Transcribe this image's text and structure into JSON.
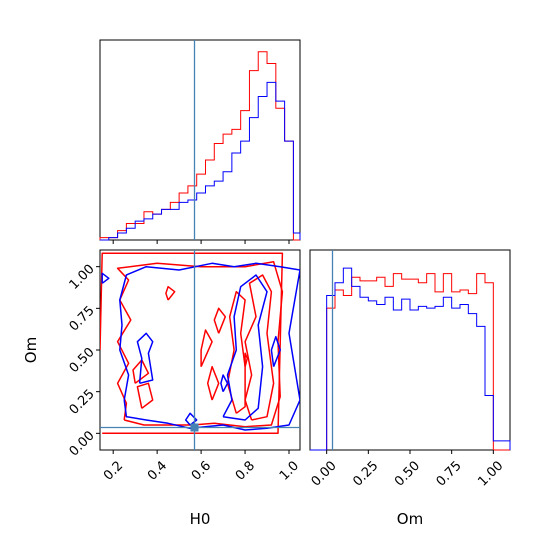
{
  "chart_data": {
    "type": "corner",
    "parameters": [
      "H0",
      "Om"
    ],
    "truths": {
      "H0": 0.57,
      "Om": 0.035
    },
    "colors": {
      "sample_a": "#ff0000",
      "sample_b": "#0000ff",
      "truth": "#4682b4"
    },
    "h0_histogram": {
      "bin_edges": [
        0.14,
        0.18,
        0.22,
        0.26,
        0.3,
        0.34,
        0.38,
        0.42,
        0.46,
        0.5,
        0.54,
        0.58,
        0.62,
        0.66,
        0.7,
        0.74,
        0.78,
        0.82,
        0.86,
        0.9,
        0.94,
        0.98,
        1.02,
        1.05
      ],
      "sample_a": [
        0.01,
        0.01,
        0.04,
        0.07,
        0.07,
        0.12,
        0.11,
        0.13,
        0.16,
        0.2,
        0.23,
        0.28,
        0.34,
        0.41,
        0.45,
        0.47,
        0.55,
        0.72,
        0.8,
        0.75,
        0.56,
        0.42,
        0.0
      ],
      "sample_b": [
        0.0,
        0.01,
        0.03,
        0.05,
        0.08,
        0.09,
        0.11,
        0.13,
        0.13,
        0.16,
        0.17,
        0.2,
        0.23,
        0.25,
        0.29,
        0.37,
        0.42,
        0.52,
        0.61,
        0.67,
        0.59,
        0.42,
        0.03
      ]
    },
    "om_histogram": {
      "bin_edges": [
        -0.1,
        -0.05,
        0.0,
        0.05,
        0.1,
        0.15,
        0.2,
        0.25,
        0.3,
        0.35,
        0.4,
        0.45,
        0.5,
        0.55,
        0.6,
        0.65,
        0.7,
        0.75,
        0.8,
        0.85,
        0.9,
        0.95,
        1.0,
        1.05,
        1.1
      ],
      "sample_a": [
        0,
        0,
        0.78,
        0.88,
        0.85,
        0.95,
        0.93,
        0.93,
        0.95,
        0.9,
        0.97,
        0.94,
        0.94,
        0.92,
        0.97,
        0.87,
        0.97,
        0.87,
        0.88,
        0.86,
        0.97,
        0.92,
        0,
        0
      ],
      "sample_b": [
        0,
        0,
        0.85,
        0.92,
        1.0,
        0.9,
        0.84,
        0.82,
        0.8,
        0.84,
        0.77,
        0.83,
        0.77,
        0.79,
        0.78,
        0.79,
        0.84,
        0.78,
        0.8,
        0.75,
        0.68,
        0.3,
        0.05,
        0.05
      ]
    },
    "joint_contours": {
      "sample_a": [
        [
          [
            0.15,
            0.0
          ],
          [
            0.95,
            0.0
          ],
          [
            0.97,
            1.08
          ],
          [
            0.15,
            1.08
          ],
          [
            0.14,
            0.5
          ]
        ],
        [
          [
            0.25,
            0.08
          ],
          [
            0.34,
            0.05
          ],
          [
            0.46,
            0.05
          ],
          [
            0.56,
            0.05
          ],
          [
            0.66,
            0.06
          ],
          [
            0.8,
            0.04
          ],
          [
            0.92,
            0.05
          ],
          [
            0.96,
            0.22
          ],
          [
            0.95,
            0.55
          ],
          [
            0.97,
            0.85
          ],
          [
            0.93,
            1.03
          ],
          [
            0.8,
            1.0
          ],
          [
            0.6,
            1.0
          ],
          [
            0.4,
            1.02
          ],
          [
            0.22,
            0.99
          ],
          [
            0.27,
            0.92
          ],
          [
            0.23,
            0.8
          ],
          [
            0.28,
            0.68
          ],
          [
            0.22,
            0.55
          ],
          [
            0.27,
            0.42
          ],
          [
            0.22,
            0.3
          ],
          [
            0.26,
            0.18
          ],
          [
            0.25,
            0.08
          ]
        ],
        [
          [
            0.83,
            0.08
          ],
          [
            0.9,
            0.1
          ],
          [
            0.93,
            0.3
          ],
          [
            0.9,
            0.6
          ],
          [
            0.92,
            0.85
          ],
          [
            0.88,
            0.95
          ],
          [
            0.82,
            0.9
          ],
          [
            0.85,
            0.7
          ],
          [
            0.8,
            0.55
          ],
          [
            0.83,
            0.35
          ],
          [
            0.8,
            0.2
          ],
          [
            0.83,
            0.08
          ]
        ],
        [
          [
            0.76,
            0.12
          ],
          [
            0.8,
            0.16
          ],
          [
            0.8,
            0.4
          ],
          [
            0.78,
            0.6
          ],
          [
            0.8,
            0.8
          ],
          [
            0.76,
            0.85
          ],
          [
            0.73,
            0.7
          ],
          [
            0.75,
            0.5
          ],
          [
            0.72,
            0.3
          ],
          [
            0.76,
            0.12
          ]
        ],
        [
          [
            0.33,
            0.15
          ],
          [
            0.38,
            0.2
          ],
          [
            0.36,
            0.3
          ],
          [
            0.31,
            0.28
          ],
          [
            0.33,
            0.15
          ]
        ],
        [
          [
            0.3,
            0.3
          ],
          [
            0.36,
            0.36
          ],
          [
            0.33,
            0.44
          ],
          [
            0.29,
            0.38
          ],
          [
            0.3,
            0.3
          ]
        ],
        [
          [
            0.6,
            0.4
          ],
          [
            0.65,
            0.55
          ],
          [
            0.62,
            0.62
          ],
          [
            0.6,
            0.5
          ],
          [
            0.6,
            0.4
          ]
        ],
        [
          [
            0.65,
            0.2
          ],
          [
            0.68,
            0.3
          ],
          [
            0.65,
            0.4
          ],
          [
            0.63,
            0.3
          ],
          [
            0.65,
            0.2
          ]
        ],
        [
          [
            0.68,
            0.6
          ],
          [
            0.71,
            0.7
          ],
          [
            0.68,
            0.75
          ],
          [
            0.66,
            0.68
          ],
          [
            0.68,
            0.6
          ]
        ],
        [
          [
            0.45,
            0.8
          ],
          [
            0.48,
            0.85
          ],
          [
            0.45,
            0.88
          ],
          [
            0.44,
            0.84
          ],
          [
            0.45,
            0.8
          ]
        ],
        [
          [
            0.8,
            0.4
          ],
          [
            0.81,
            0.45
          ],
          [
            0.8,
            0.48
          ],
          [
            0.8,
            0.4
          ]
        ]
      ],
      "sample_b": [
        [
          [
            0.15,
            0.9
          ],
          [
            0.18,
            0.93
          ],
          [
            0.15,
            0.96
          ],
          [
            0.15,
            0.9
          ]
        ],
        [
          [
            0.25,
            0.2
          ],
          [
            0.27,
            0.35
          ],
          [
            0.23,
            0.5
          ],
          [
            0.24,
            0.65
          ],
          [
            0.23,
            0.8
          ],
          [
            0.26,
            0.95
          ],
          [
            0.35,
            1.0
          ],
          [
            0.5,
            0.98
          ],
          [
            0.65,
            1.02
          ],
          [
            0.75,
            1.0
          ],
          [
            0.85,
            1.02
          ],
          [
            0.96,
            1.0
          ],
          [
            1.05,
            0.98
          ],
          [
            1.0,
            0.6
          ],
          [
            1.05,
            0.2
          ],
          [
            1.0,
            0.05
          ],
          [
            0.9,
            0.03
          ],
          [
            0.8,
            0.02
          ],
          [
            0.7,
            0.05
          ],
          [
            0.55,
            0.03
          ],
          [
            0.45,
            0.06
          ],
          [
            0.35,
            0.08
          ],
          [
            0.26,
            0.1
          ],
          [
            0.25,
            0.2
          ]
        ],
        [
          [
            0.32,
            0.3
          ],
          [
            0.38,
            0.32
          ],
          [
            0.36,
            0.48
          ],
          [
            0.38,
            0.55
          ],
          [
            0.35,
            0.6
          ],
          [
            0.31,
            0.55
          ],
          [
            0.33,
            0.45
          ],
          [
            0.32,
            0.3
          ]
        ],
        [
          [
            0.7,
            0.1
          ],
          [
            0.8,
            0.08
          ],
          [
            0.86,
            0.15
          ],
          [
            0.88,
            0.4
          ],
          [
            0.86,
            0.65
          ],
          [
            0.9,
            0.85
          ],
          [
            0.85,
            0.95
          ],
          [
            0.78,
            0.88
          ],
          [
            0.75,
            0.7
          ],
          [
            0.76,
            0.5
          ],
          [
            0.72,
            0.35
          ],
          [
            0.74,
            0.2
          ],
          [
            0.7,
            0.1
          ]
        ],
        [
          [
            0.93,
            0.4
          ],
          [
            0.96,
            0.5
          ],
          [
            0.94,
            0.58
          ],
          [
            0.92,
            0.5
          ],
          [
            0.93,
            0.4
          ]
        ],
        [
          [
            0.55,
            0.05
          ],
          [
            0.58,
            0.08
          ],
          [
            0.55,
            0.12
          ],
          [
            0.53,
            0.08
          ],
          [
            0.55,
            0.05
          ]
        ],
        [
          [
            0.7,
            0.25
          ],
          [
            0.72,
            0.3
          ],
          [
            0.7,
            0.35
          ],
          [
            0.69,
            0.3
          ],
          [
            0.7,
            0.25
          ]
        ]
      ]
    },
    "axes": {
      "h0": {
        "label": "H0",
        "lim": [
          0.14,
          1.05
        ],
        "ticks": [
          0.2,
          0.4,
          0.6,
          0.8,
          1.0
        ],
        "tick_labels": [
          "0.2",
          "0.4",
          "0.6",
          "0.8",
          "1.0"
        ]
      },
      "om_y": {
        "label": "Om",
        "lim": [
          -0.1,
          1.1
        ],
        "ticks": [
          0.0,
          0.25,
          0.5,
          0.75,
          1.0
        ],
        "tick_labels": [
          "0.00",
          "0.25",
          "0.50",
          "0.75",
          "1.00"
        ]
      },
      "om_x": {
        "label": "Om",
        "lim": [
          -0.1,
          1.1
        ],
        "ticks": [
          0.0,
          0.25,
          0.5,
          0.75,
          1.0
        ],
        "tick_labels": [
          "0.00",
          "0.25",
          "0.50",
          "0.75",
          "1.00"
        ]
      }
    },
    "grid": false,
    "legend": "none"
  }
}
